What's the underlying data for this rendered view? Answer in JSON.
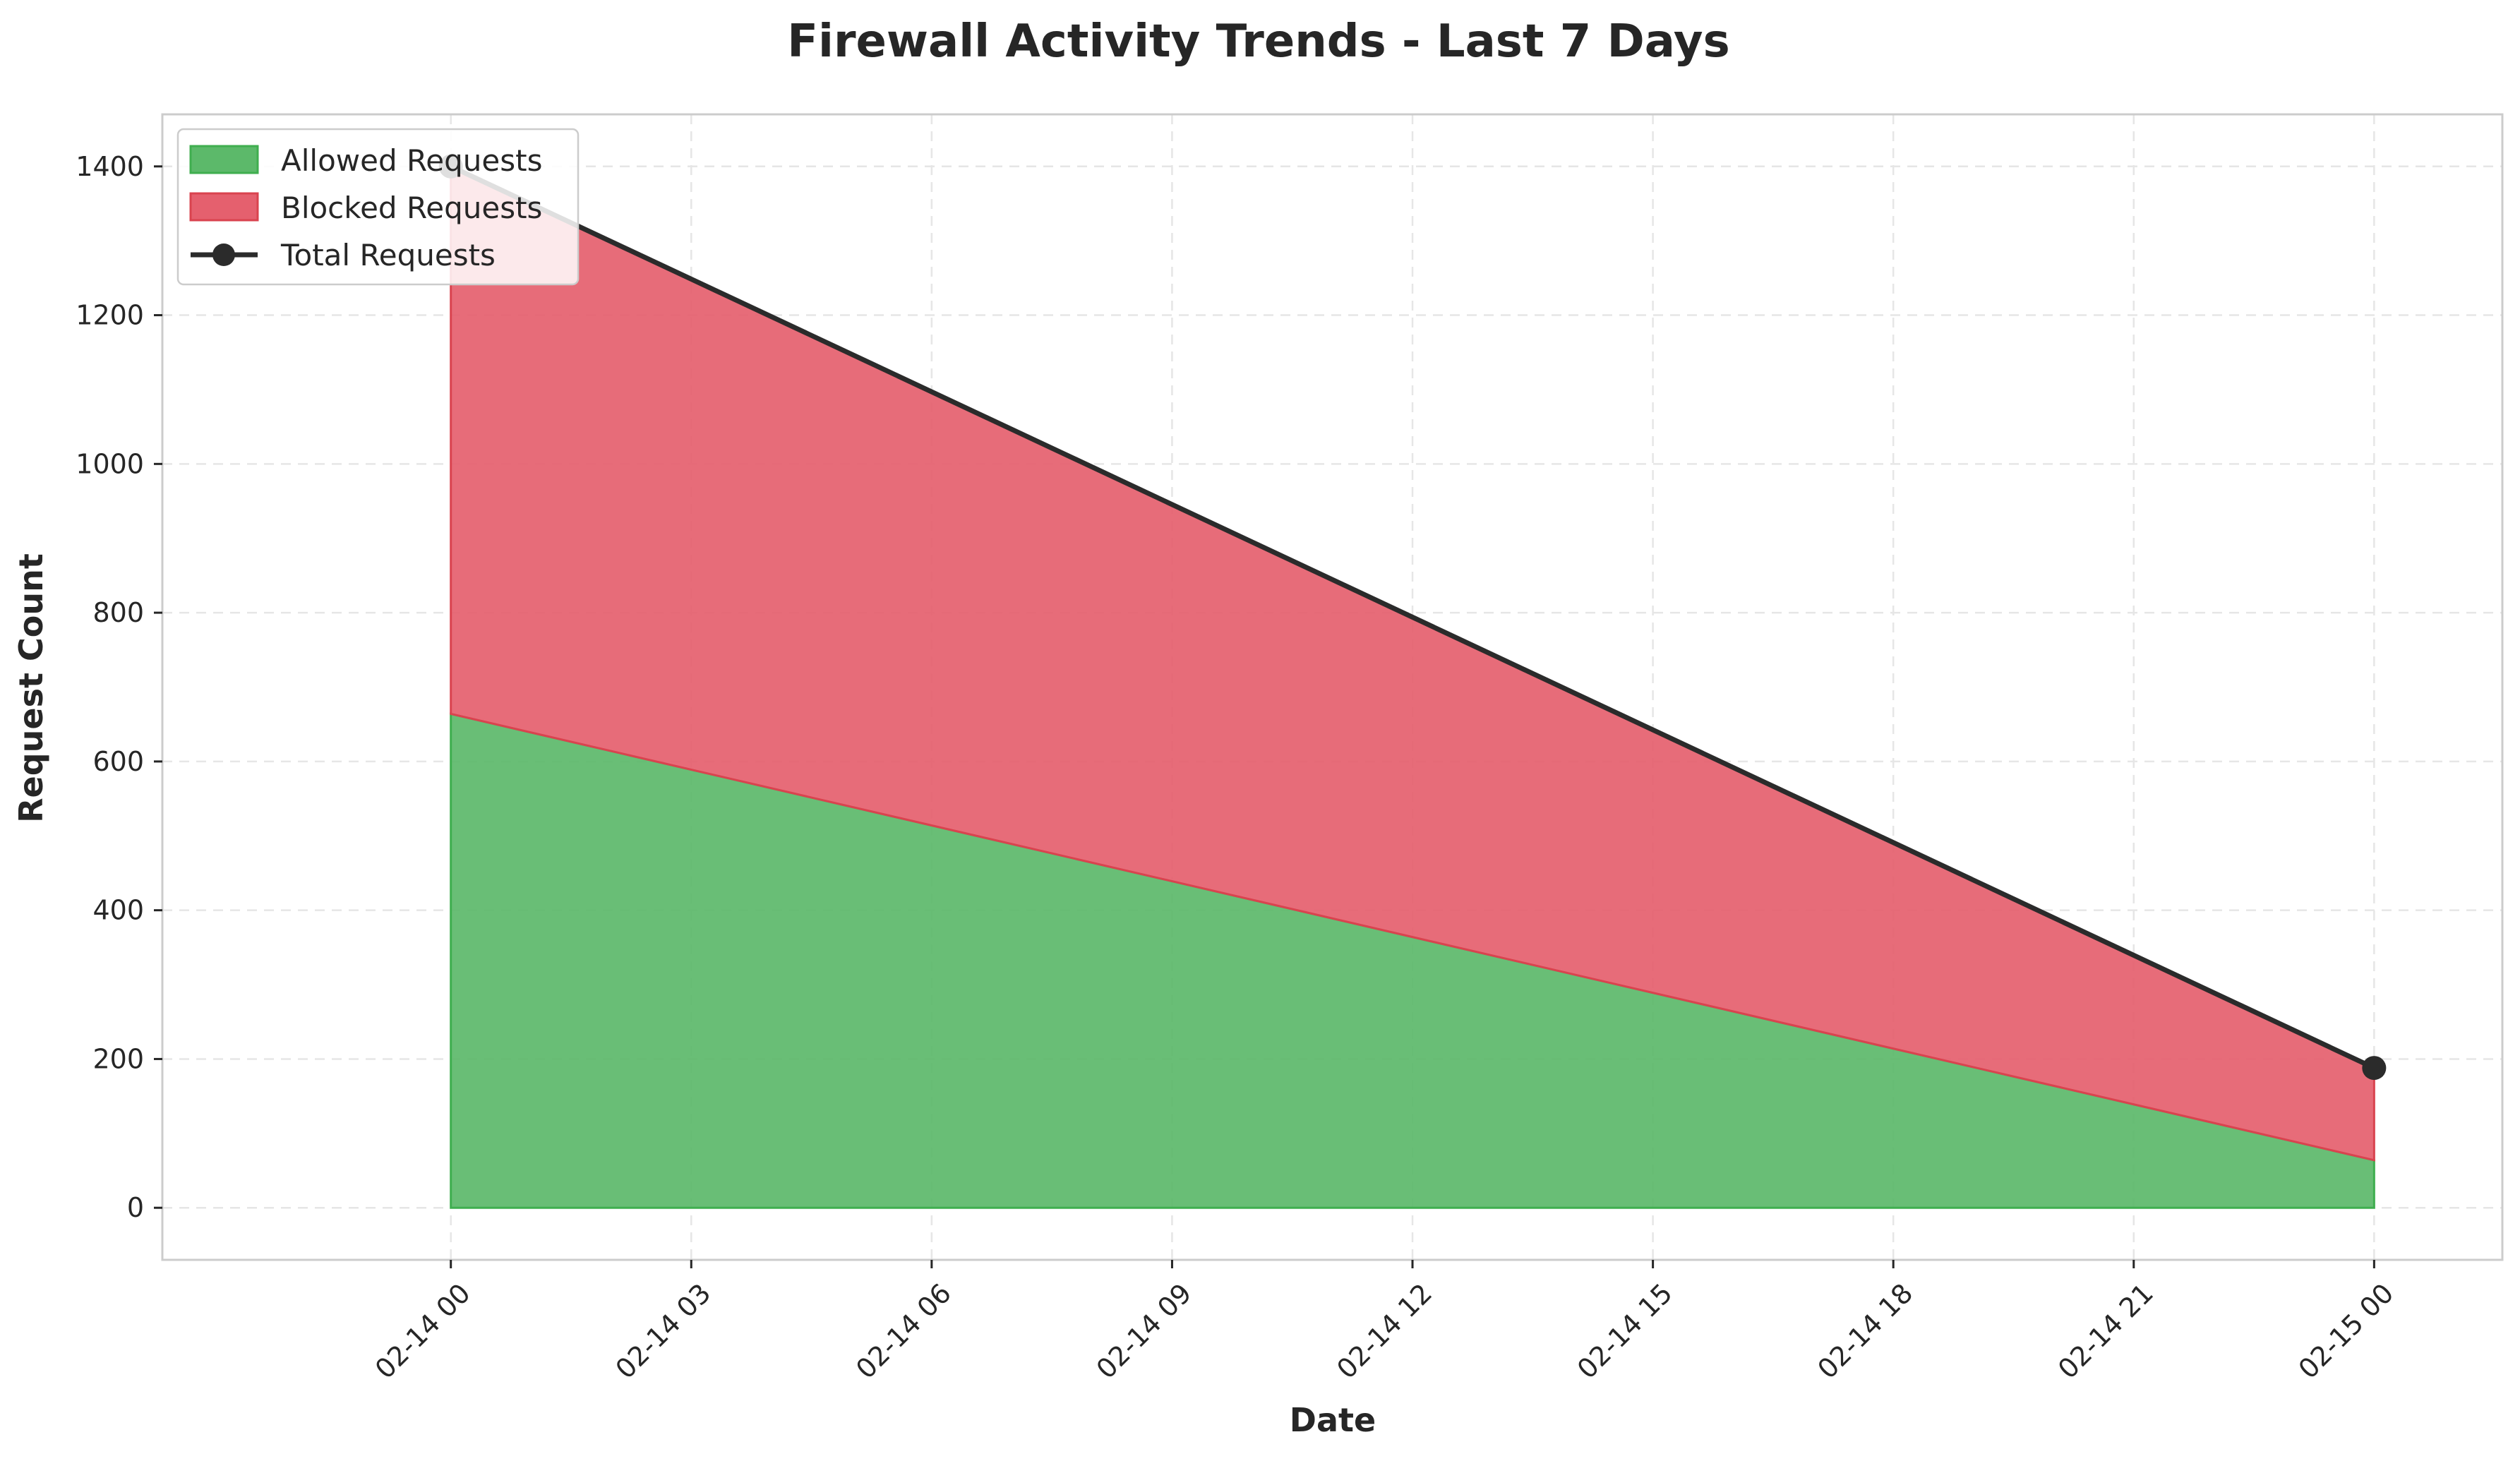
{
  "chart_data": {
    "type": "area",
    "title": "Firewall Activity Trends - Last 7 Days",
    "xlabel": "Date",
    "ylabel": "Request Count",
    "x": [
      "02-14 00",
      "02-15 00"
    ],
    "x_tick_labels": [
      "02-14 00",
      "02-14 03",
      "02-14 06",
      "02-14 09",
      "02-14 12",
      "02-14 15",
      "02-14 18",
      "02-14 21",
      "02-15 00"
    ],
    "y_tick_labels": [
      "0",
      "200",
      "400",
      "600",
      "800",
      "1000",
      "1200",
      "1400"
    ],
    "ylim": [
      -70,
      1470
    ],
    "xlim_hours": [
      -3.6,
      25.6
    ],
    "grid": true,
    "legend_position": "upper-left",
    "series": [
      {
        "name": "Allowed Requests",
        "kind": "stacked-area",
        "color": "#5cb96a",
        "edge_color": "#3fae4f",
        "values": [
          664,
          64
        ]
      },
      {
        "name": "Blocked Requests",
        "kind": "stacked-area",
        "color": "#e5606e",
        "edge_color": "#d9434f",
        "values": [
          736,
          124
        ]
      },
      {
        "name": "Total Requests",
        "kind": "line-markers",
        "color": "#2b2b2b",
        "values": [
          1400,
          188
        ]
      }
    ]
  }
}
